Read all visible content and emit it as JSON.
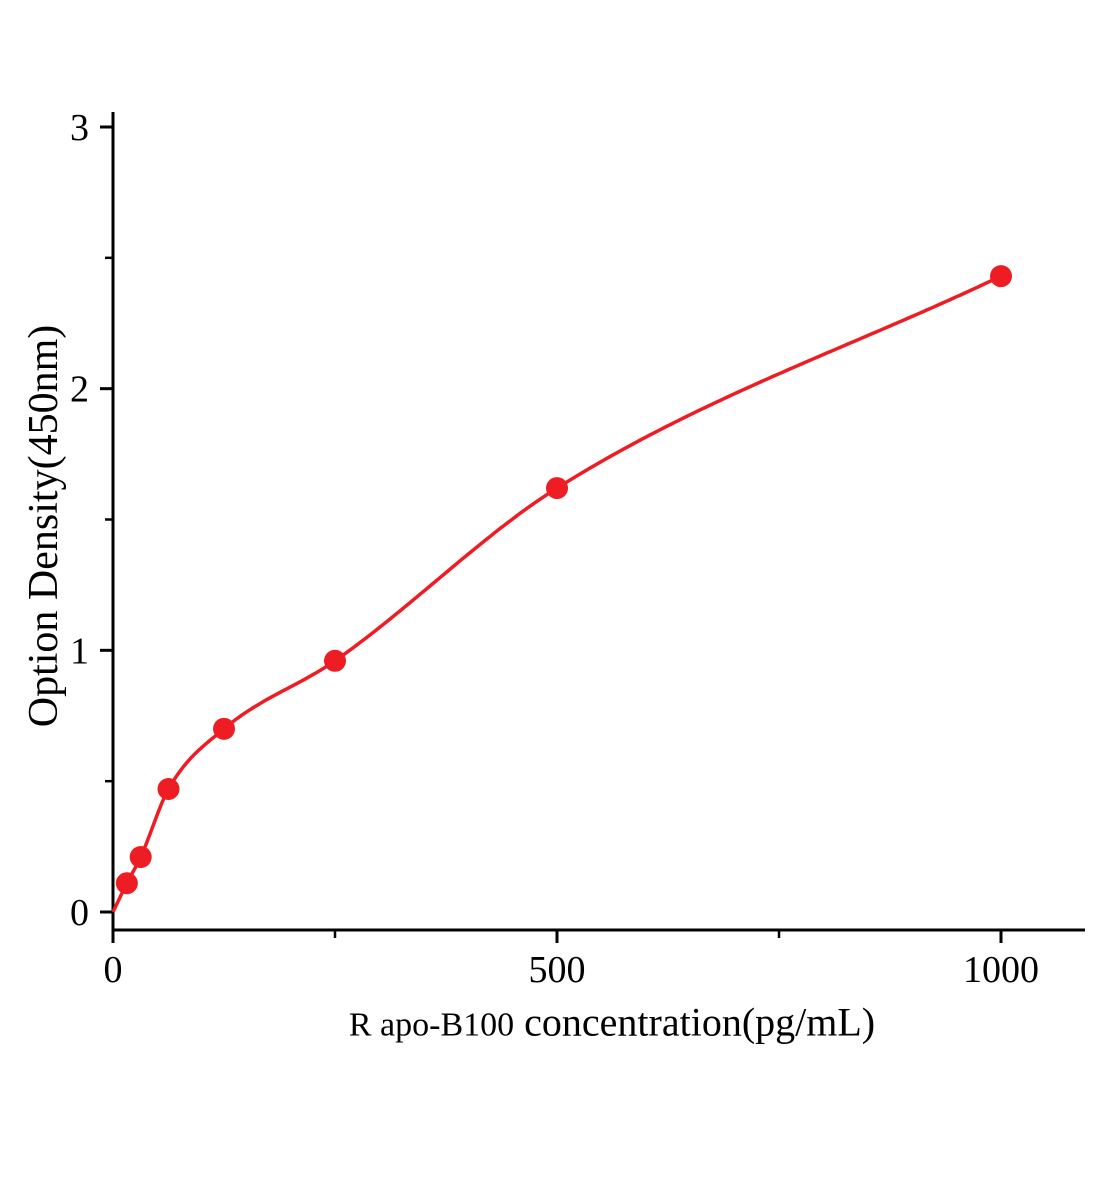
{
  "chart_data": {
    "type": "scatter",
    "mode": "scatter with smooth fitted curve",
    "title": "",
    "xlabel_prefix": "R apo-B100",
    "xlabel_main": "concentration(pg/mL)",
    "ylabel": "Option Density(450nm)",
    "x": [
      15.6,
      31.2,
      62.5,
      125,
      250,
      500,
      1000
    ],
    "y": [
      0.11,
      0.21,
      0.47,
      0.7,
      0.96,
      1.62,
      2.43
    ],
    "curve_anchor": [
      [
        0,
        0
      ]
    ],
    "xlim": [
      0,
      1095
    ],
    "ylim": [
      0,
      3
    ],
    "x_major_ticks": [
      0,
      500,
      1000
    ],
    "x_minor_ticks": [
      250,
      750
    ],
    "y_major_ticks": [
      0,
      1,
      2,
      3
    ],
    "y_minor_ticks": [
      0.5,
      1.5,
      2.5
    ],
    "grid": false,
    "legend": null,
    "accent_color": "#ee1c23",
    "axis_color": "#000000"
  }
}
